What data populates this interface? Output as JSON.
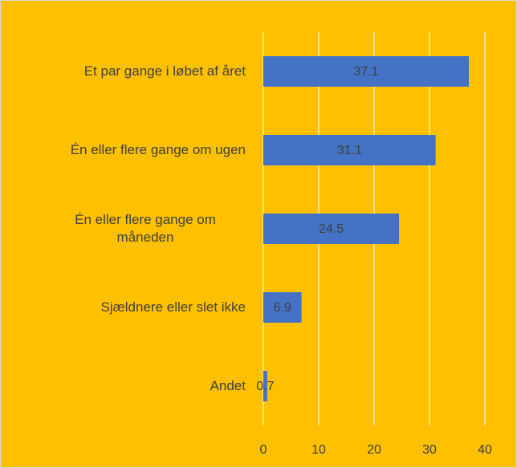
{
  "chart_data": {
    "type": "bar",
    "orientation": "horizontal",
    "categories": [
      "Et par gange i løbet af året",
      "Én eller flere gange om ugen",
      "Én eller flere gange om måneden",
      "Sjældnere eller slet ikke",
      "Andet"
    ],
    "values": [
      37.1,
      31.1,
      24.5,
      6.9,
      0.7
    ],
    "color": "#4472c4",
    "background": "#ffc000",
    "xlim": [
      0,
      40
    ],
    "xticks": [
      0,
      10,
      20,
      30,
      40
    ],
    "grid": true
  }
}
